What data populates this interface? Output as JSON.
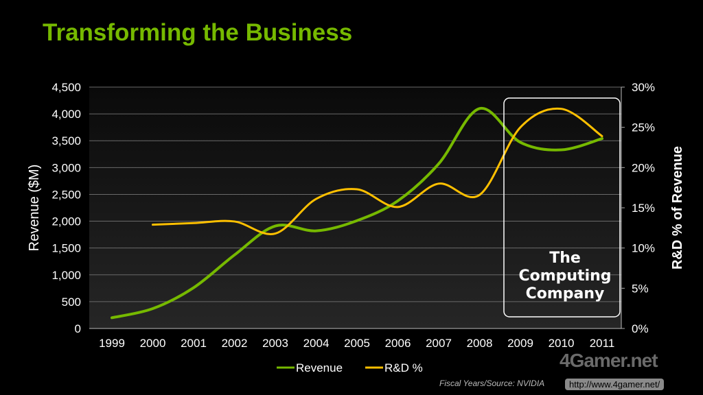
{
  "title": "Transforming the Business",
  "chart_data": {
    "type": "line",
    "title": "Transforming the Business",
    "categories": [
      "1999",
      "2000",
      "2001",
      "2002",
      "2003",
      "2004",
      "2005",
      "2006",
      "2007",
      "2008",
      "2009",
      "2010",
      "2011"
    ],
    "series": [
      {
        "name": "Revenue",
        "axis": "left",
        "color": "#76b900",
        "values": [
          200,
          370,
          760,
          1370,
          1910,
          1820,
          2010,
          2380,
          3070,
          4100,
          3470,
          3330,
          3540
        ]
      },
      {
        "name": "R&D %",
        "axis": "right",
        "color": "#ffc000",
        "values": [
          null,
          12.9,
          13.1,
          13.3,
          11.8,
          16.1,
          17.3,
          15.1,
          18.0,
          16.6,
          25.0,
          27.3,
          23.9
        ]
      }
    ],
    "ylabel": "Revenue ($M)",
    "y2label": "R&D % of Revenue",
    "ylim": [
      0,
      4500
    ],
    "y2lim": [
      0,
      30
    ],
    "yticks": [
      "0",
      "500",
      "1,000",
      "1,500",
      "2,000",
      "2,500",
      "3,000",
      "3,500",
      "4,000",
      "4,500"
    ],
    "y2ticks": [
      "0%",
      "5%",
      "10%",
      "15%",
      "20%",
      "25%",
      "30%"
    ],
    "grid": true,
    "legend": "bottom",
    "annotation": {
      "lines": [
        "The",
        "Computing",
        "Company"
      ],
      "range": [
        "2009",
        "2011"
      ]
    },
    "footnote": "Fiscal Years/Source: NVIDIA"
  },
  "watermark": {
    "logo": "4Gamer.net",
    "url": "http://www.4gamer.net/"
  }
}
